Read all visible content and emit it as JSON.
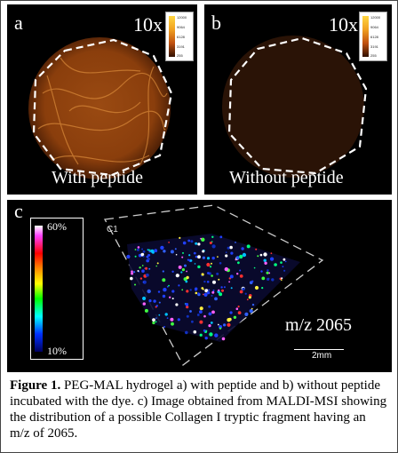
{
  "panels": {
    "a": {
      "label": "a",
      "magnification": "10x",
      "caption": "With peptide",
      "colorbar_ticks": [
        "12000",
        "9064",
        "6128",
        "3191",
        "255"
      ]
    },
    "b": {
      "label": "b",
      "magnification": "10x",
      "caption": "Without peptide",
      "colorbar_ticks": [
        "12000",
        "9064",
        "6128",
        "3191",
        "255"
      ]
    },
    "c": {
      "label": "c",
      "region_label": "C1",
      "legend_max": "60%",
      "legend_min": "10%",
      "mz_label": "m/z 2065",
      "scale_bar": "2mm"
    }
  },
  "caption": {
    "figure_label": "Figure 1.",
    "text": " PEG-MAL hydrogel  a) with peptide and b) without peptide incubated  with the dye. c) Image obtained from MALDI-MSI showing the distribution  of a possible  Collagen  I tryptic fragment  having  an m/z  of 2065."
  },
  "colors": {
    "sample_a": "#b85a18",
    "sample_b": "#3a1a08",
    "panel_bg": "#000000"
  }
}
